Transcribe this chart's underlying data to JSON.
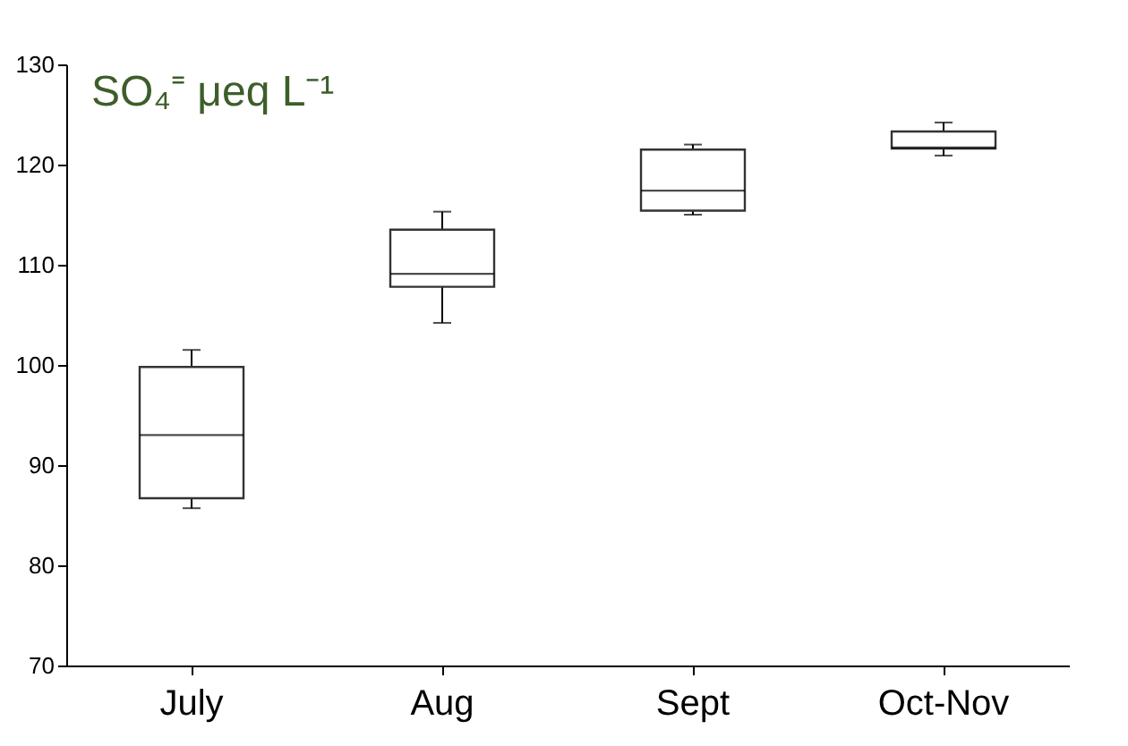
{
  "chart_data": {
    "type": "box",
    "title": "SO₄⁼ μeq L⁻¹",
    "categories": [
      "July",
      "Aug",
      "Sept",
      "Oct-Nov"
    ],
    "boxes": [
      {
        "low": 85.7,
        "q1": 86.7,
        "median": 93.0,
        "q3": 99.8,
        "high": 101.5
      },
      {
        "low": 104.2,
        "q1": 107.8,
        "median": 109.1,
        "q3": 113.5,
        "high": 115.3
      },
      {
        "low": 115.0,
        "q1": 115.4,
        "median": 117.4,
        "q3": 121.5,
        "high": 122.0
      },
      {
        "low": 120.9,
        "q1": 121.6,
        "median": 121.7,
        "q3": 123.3,
        "high": 124.2
      }
    ],
    "ylim": [
      70,
      130
    ],
    "yticks": [
      70,
      80,
      90,
      100,
      110,
      120,
      130
    ],
    "grid": false
  }
}
